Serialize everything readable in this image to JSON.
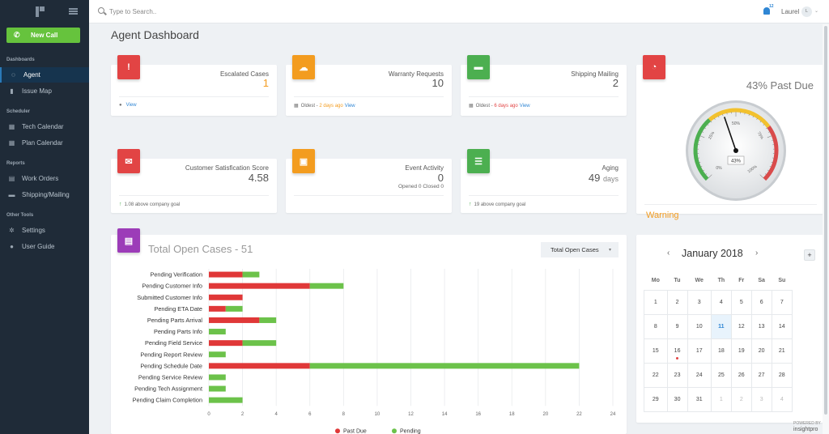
{
  "sidebar": {
    "new_call": "New Call",
    "sections": {
      "dashboards": "Dashboards",
      "scheduler": "Scheduler",
      "reports": "Reports",
      "other": "Other Tools"
    },
    "items": {
      "agent": "Agent",
      "issue_map": "Issue Map",
      "tech_calendar": "Tech Calendar",
      "plan_calendar": "Plan Calendar",
      "work_orders": "Work Orders",
      "shipping": "Shipping/Mailing",
      "settings": "Settings",
      "user_guide": "User Guide"
    }
  },
  "topbar": {
    "search_placeholder": "Type to Search..",
    "notifications_count": "12",
    "user_name": "Laurel",
    "avatar_initial": "L"
  },
  "page": {
    "title": "Agent Dashboard"
  },
  "cards": {
    "escalated": {
      "label": "Escalated Cases",
      "value": "1",
      "link": "View"
    },
    "warranty": {
      "label": "Warranty Requests",
      "value": "10",
      "foot_prefix": "Oldest -",
      "foot_age": "2 days ago",
      "link": "View"
    },
    "shipping": {
      "label": "Shipping Mailing",
      "value": "2",
      "foot_prefix": "Oldest -",
      "foot_age": "6 days ago",
      "link": "View"
    },
    "csat": {
      "label": "Customer Satisfication Score",
      "value": "4.58",
      "foot": "1.08 above company goal"
    },
    "event": {
      "label": "Event Activity",
      "value": "0",
      "sub": "Opened 0 Closed 0"
    },
    "aging": {
      "label": "Aging",
      "value": "49",
      "unit": "days",
      "foot": "19 above company goal"
    }
  },
  "gauge": {
    "title": "43% Past Due",
    "value": 43,
    "value_label": "43%",
    "ticks": [
      "25%",
      "50%",
      "75%",
      "0%",
      "100%"
    ],
    "status": "Warning"
  },
  "chart_data": {
    "type": "bar",
    "orientation": "horizontal",
    "stacked": true,
    "title": "Total Open Cases - 51",
    "categories": [
      "Pending Verification",
      "Pending Customer Info",
      "Submitted Customer Info",
      "Pending ETA Date",
      "Pending Parts Arrival",
      "Pending Parts Info",
      "Pending Field Service",
      "Pending Report Review",
      "Pending Schedule Date",
      "Pending Service Review",
      "Pending Tech Assignment",
      "Pending Claim Completion"
    ],
    "series": [
      {
        "name": "Past Due",
        "color": "#e03838",
        "values": [
          2,
          6,
          2,
          1,
          3,
          0,
          2,
          0,
          6,
          0,
          0,
          0
        ]
      },
      {
        "name": "Pending",
        "color": "#6cc24a",
        "values": [
          1,
          2,
          0,
          1,
          1,
          1,
          2,
          1,
          16,
          1,
          1,
          2
        ]
      }
    ],
    "xlim": [
      0,
      24
    ],
    "xticks": [
      "0",
      "2",
      "4",
      "6",
      "8",
      "10",
      "12",
      "14",
      "16",
      "18",
      "20",
      "22",
      "24"
    ],
    "legend": "bottom",
    "grid": true
  },
  "chart_select": {
    "value": "Total Open Cases"
  },
  "calendar": {
    "month": "January 2018",
    "add": "+",
    "weekdays": [
      "Mo",
      "Tu",
      "We",
      "Th",
      "Fr",
      "Sa",
      "Su"
    ],
    "weeks": [
      [
        "1",
        "2",
        "3",
        "4",
        "5",
        "6",
        "7"
      ],
      [
        "8",
        "9",
        "10",
        "11",
        "12",
        "13",
        "14"
      ],
      [
        "15",
        "16",
        "17",
        "18",
        "19",
        "20",
        "21"
      ],
      [
        "22",
        "23",
        "24",
        "25",
        "26",
        "27",
        "28"
      ],
      [
        "29",
        "30",
        "31",
        "1",
        "2",
        "3",
        "4"
      ]
    ],
    "today": "11"
  },
  "footer": {
    "powered": "POWERED BY",
    "brand": "insightpro"
  }
}
